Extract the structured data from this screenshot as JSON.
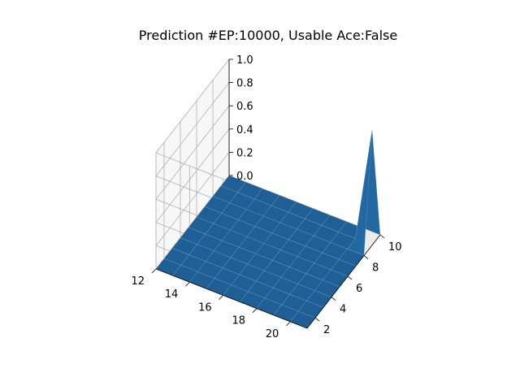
{
  "chart_data": {
    "type": "surface",
    "title": "Prediction #EP:10000, Usable Ace:False",
    "xlabel": "",
    "ylabel": "",
    "zlabel": "",
    "x": [
      12,
      13,
      14,
      15,
      16,
      17,
      18,
      19,
      20,
      21
    ],
    "y": [
      1,
      2,
      3,
      4,
      5,
      6,
      7,
      8,
      9,
      10
    ],
    "z": [
      [
        0,
        0,
        0,
        0,
        0,
        0,
        0,
        0,
        0,
        0
      ],
      [
        0,
        0,
        0,
        0,
        0,
        0,
        0,
        0,
        0,
        0
      ],
      [
        0,
        0,
        0,
        0,
        0,
        0,
        0,
        0,
        0,
        0
      ],
      [
        0,
        0,
        0,
        0,
        0,
        0,
        0,
        0,
        0,
        0
      ],
      [
        0,
        0,
        0,
        0,
        0,
        0,
        0,
        0,
        0,
        0
      ],
      [
        0,
        0,
        0,
        0,
        0,
        0,
        0,
        0,
        0,
        0
      ],
      [
        0,
        0,
        0,
        0,
        0,
        0,
        0,
        0,
        0,
        0
      ],
      [
        0,
        0,
        0,
        0,
        0,
        0,
        0,
        0,
        0,
        0
      ],
      [
        0,
        0,
        0,
        0,
        0,
        0,
        0,
        0,
        0,
        1
      ],
      [
        0,
        0,
        0,
        0,
        0,
        0,
        0,
        0,
        0,
        0
      ]
    ],
    "x_ticks": [
      "12",
      "14",
      "16",
      "18",
      "20"
    ],
    "y_ticks": [
      "2",
      "4",
      "6",
      "8",
      "10"
    ],
    "z_ticks": [
      "0.0",
      "0.2",
      "0.4",
      "0.6",
      "0.8",
      "1.0"
    ],
    "xlim": [
      12,
      21
    ],
    "ylim": [
      1,
      10
    ],
    "zlim": [
      0,
      1
    ],
    "grid": true,
    "surface_color": "#1f5f95"
  }
}
